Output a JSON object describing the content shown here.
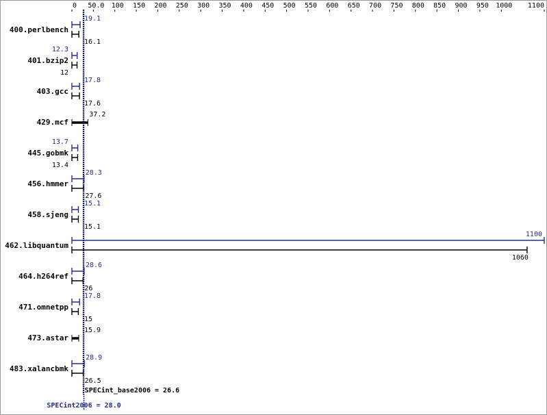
{
  "chart_data": {
    "type": "bar",
    "categories": [
      "400.perlbench",
      "401.bzip2",
      "403.gcc",
      "429.mcf",
      "445.gobmk",
      "456.hmmer",
      "458.sjeng",
      "462.libquantum",
      "464.h264ref",
      "471.omnetpp",
      "473.astar",
      "483.xalancbmk"
    ],
    "series": [
      {
        "color": "#232c8c",
        "values": [
          19.1,
          12.3,
          17.8,
          null,
          13.7,
          28.3,
          15.1,
          1100,
          28.6,
          17.8,
          null,
          28.9
        ]
      },
      {
        "color": "#000000",
        "values": [
          16.1,
          12.0,
          17.6,
          37.2,
          13.4,
          27.6,
          15.1,
          1060,
          26.0,
          15.0,
          15.9,
          26.5
        ]
      }
    ],
    "xlim": [
      0,
      1100
    ],
    "xticks": [
      0,
      {
        "value": 50,
        "label": "50.0"
      },
      100,
      150,
      200,
      250,
      300,
      350,
      400,
      450,
      500,
      550,
      600,
      650,
      700,
      750,
      800,
      850,
      900,
      950,
      1000,
      1100
    ],
    "reference_lines": [
      {
        "name": "SPECint_base2006 = 26.6",
        "value": 26.6,
        "color": "#000000"
      },
      {
        "name": "SPECint2006 = 28.0",
        "value": 28.0,
        "color": "#232c8c"
      }
    ]
  }
}
